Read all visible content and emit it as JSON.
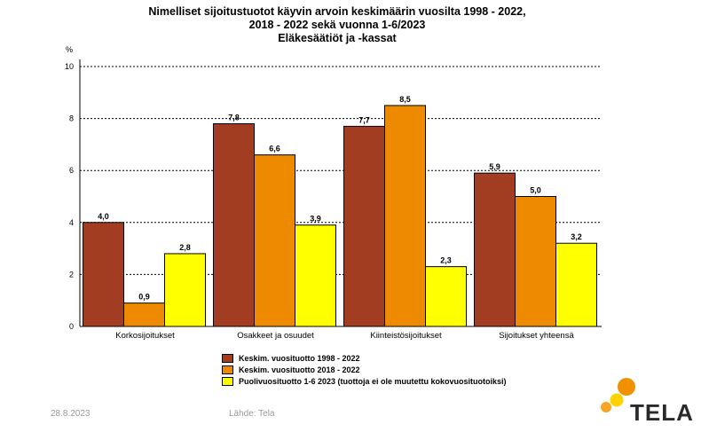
{
  "header": {
    "title_lines": [
      "Nimelliset sijoitustuotot käyvin arvoin keskimäärin vuosilta 1998 - 2022,",
      "2018 - 2022 sekä vuonna 1-6/2023",
      "Eläkesäätiöt ja -kassat"
    ]
  },
  "chart_data": {
    "type": "bar",
    "title": "Nimelliset sijoitustuotot käyvin arvoin keskimäärin vuosilta 1998 - 2022, 2018 - 2022 sekä vuonna 1-6/2023 Eläkesäätiöt ja -kassat",
    "categories": [
      "Korkosijoitukset",
      "Osakkeet ja osuudet",
      "Kiinteistösijoitukset",
      "Sijoitukset yhteensä"
    ],
    "series": [
      {
        "name": "Keskim. vuosituotto 1998 - 2022",
        "color": "#A33D22",
        "values": [
          4.0,
          7.8,
          7.7,
          5.9
        ],
        "labels": [
          "4,0",
          "7,8",
          "7,7",
          "5,9"
        ]
      },
      {
        "name": "Keskim. vuosituotto 2018 - 2022",
        "color": "#EE8A00",
        "values": [
          0.9,
          6.6,
          8.5,
          5.0
        ],
        "labels": [
          "0,9",
          "6,6",
          "8,5",
          "5,0"
        ]
      },
      {
        "name": "Puolivuosituotto 1-6 2023 (tuottoja ei ole muutettu kokovuosituotoiksi)",
        "color": "#FFFF00",
        "values": [
          2.8,
          3.9,
          2.3,
          3.2
        ],
        "labels": [
          "2,8",
          "3,9",
          "2,3",
          "3,2"
        ]
      }
    ],
    "ylabel": "%",
    "ylim": [
      0,
      10
    ],
    "yticks": [
      "0",
      "2",
      "4",
      "6",
      "8",
      "10"
    ],
    "grid": true,
    "legend_position": "bottom"
  },
  "footer": {
    "date": "28.8.2023",
    "source": "Lähde: Tela"
  },
  "logo": {
    "text": "TELA",
    "colors": [
      "#F29100",
      "#FFD200",
      "#F6A623"
    ]
  }
}
